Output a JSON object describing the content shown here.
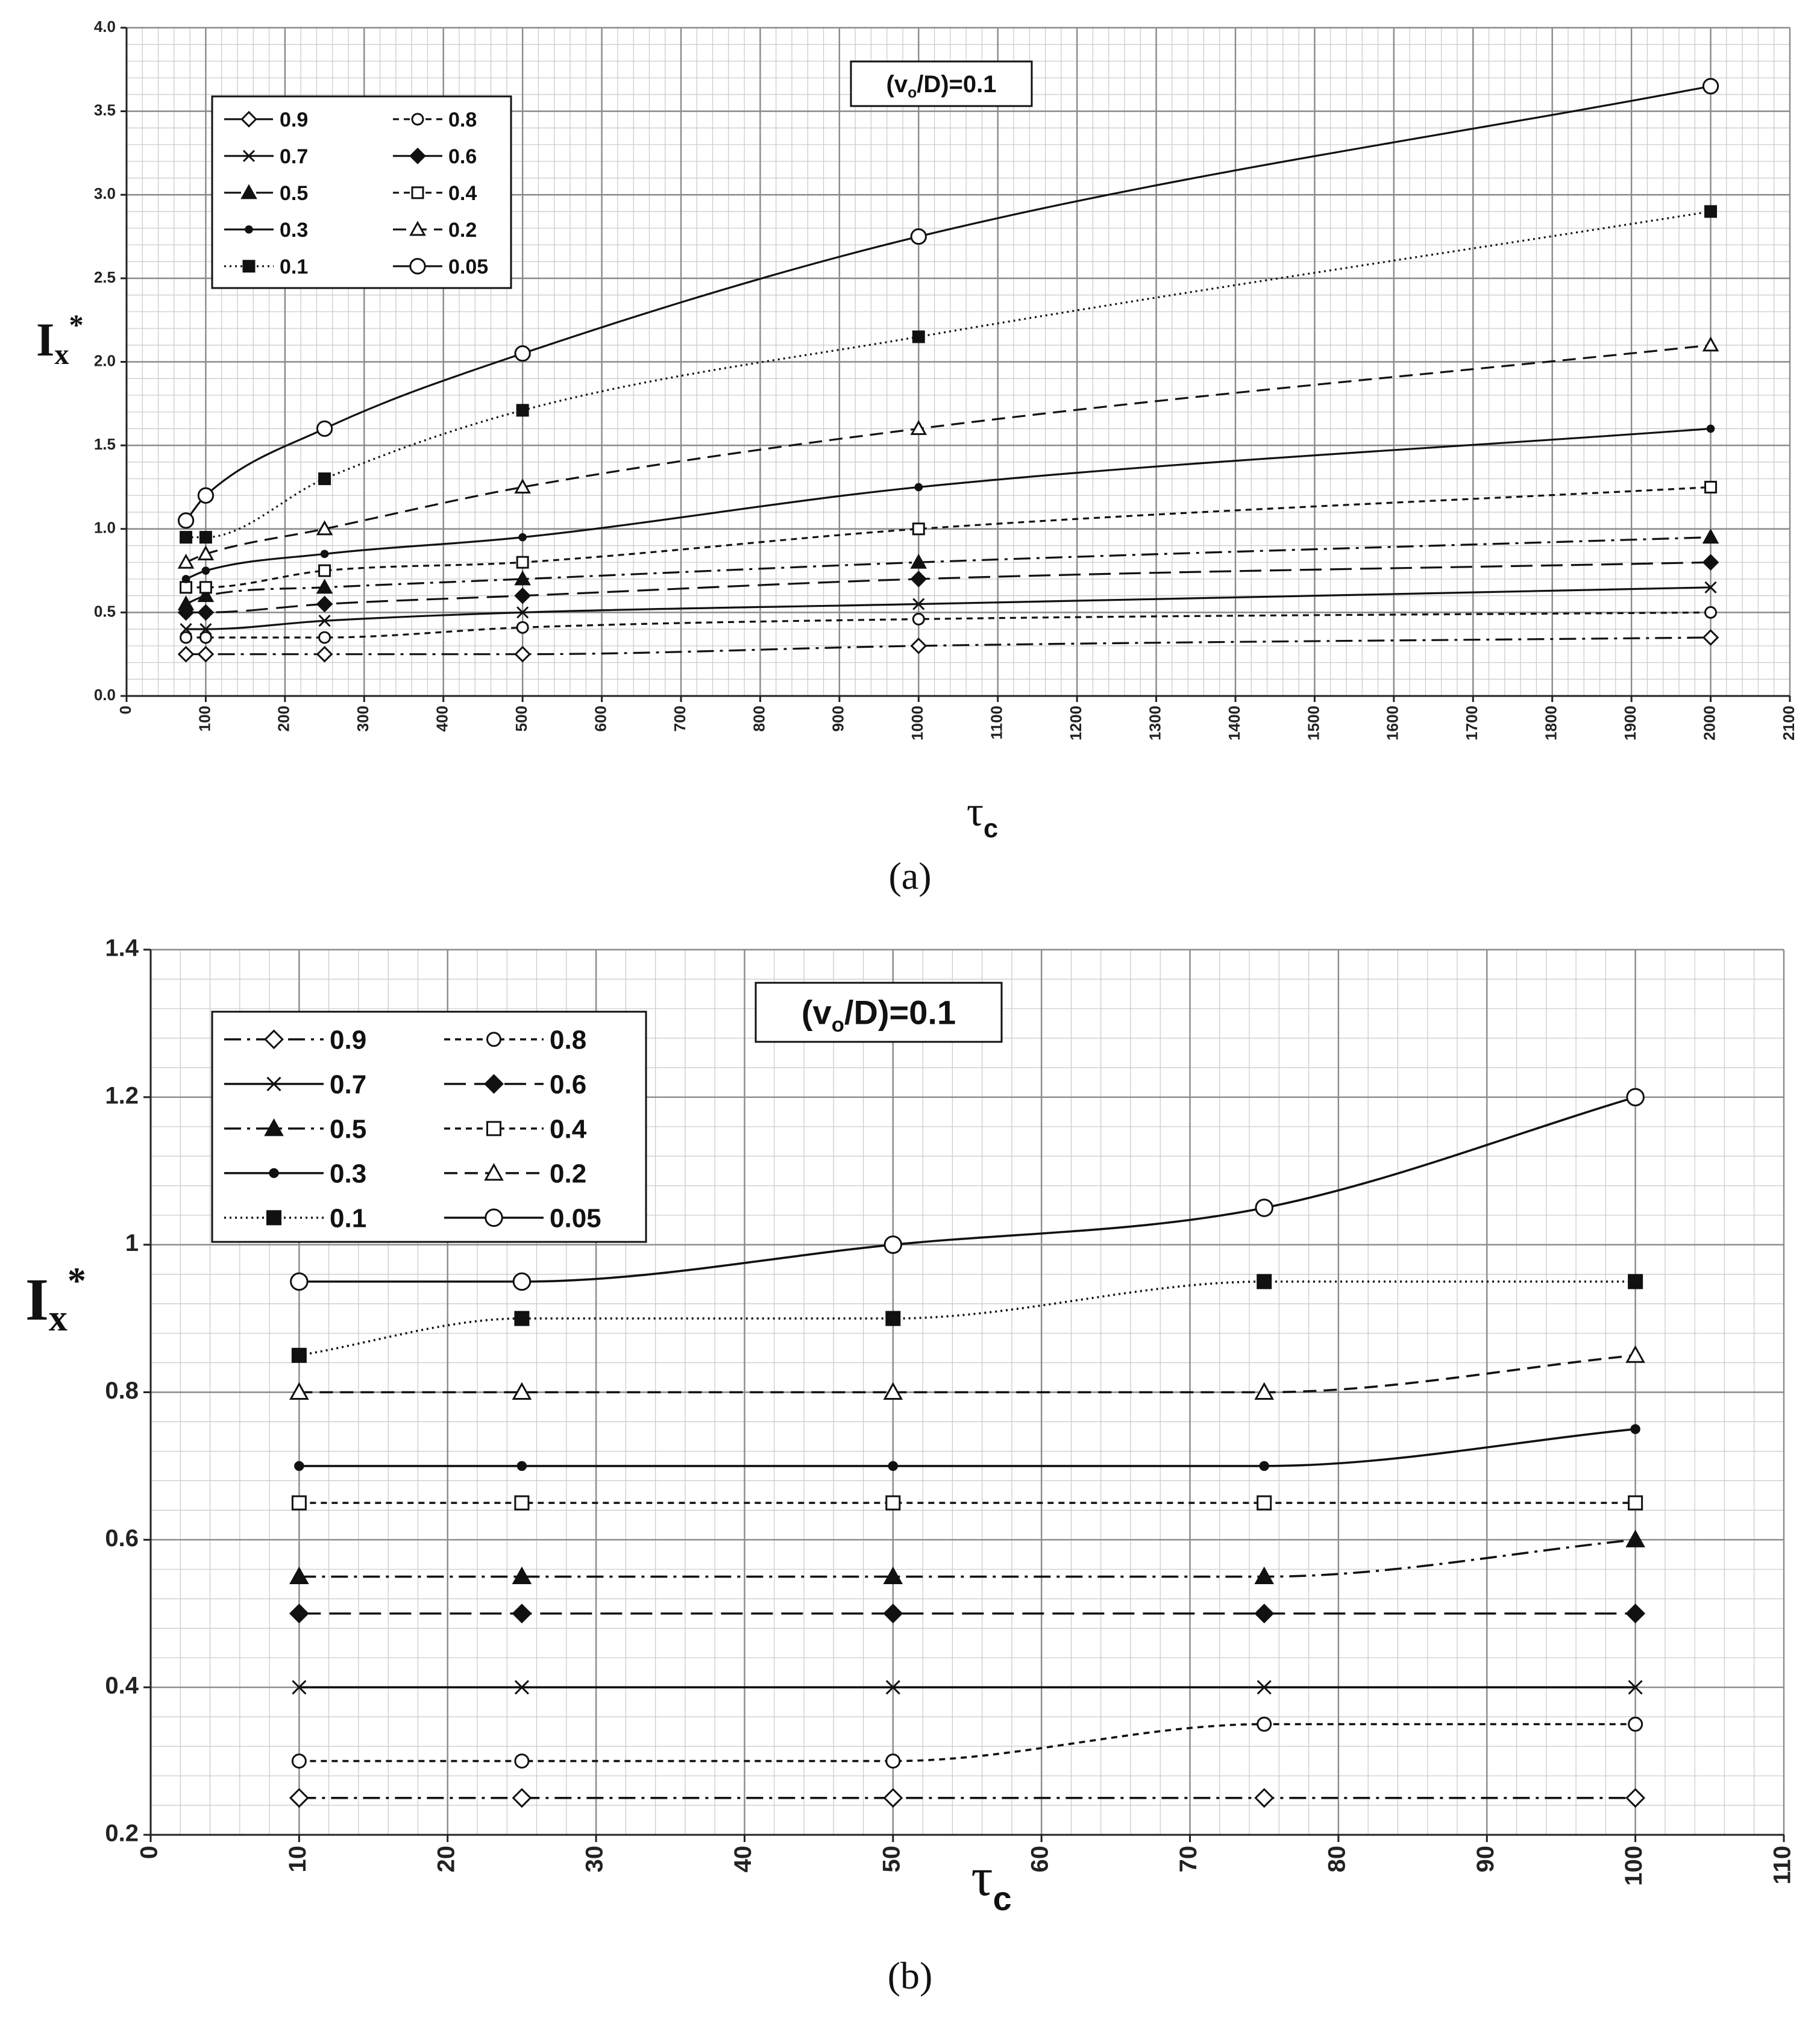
{
  "chart_data": [
    {
      "type": "line",
      "panel": "a",
      "caption": "(a)",
      "annotation": "(vo/D)=0.1",
      "annotation_parts": {
        "pre": "(v",
        "sub": "o",
        "post": "/D)=0.1"
      },
      "xlabel": "τc",
      "xlabel_parts": {
        "main": "τ",
        "sub": "c"
      },
      "ylabel": "Ix*",
      "ylabel_parts": {
        "main": "I",
        "sub": "x",
        "sup": "*"
      },
      "xlim": [
        0,
        2100
      ],
      "ylim": [
        0,
        4.0
      ],
      "x_ticks": [
        0,
        100,
        200,
        300,
        400,
        500,
        600,
        700,
        800,
        900,
        1000,
        1100,
        1200,
        1300,
        1400,
        1500,
        1600,
        1700,
        1800,
        1900,
        2000,
        2100
      ],
      "x_tick_labels": [
        "0",
        "100",
        "200",
        "300",
        "400",
        "500",
        "600",
        "700",
        "800",
        "900",
        "1000",
        "1100",
        "1200",
        "1300",
        "1400",
        "1500",
        "1600",
        "1700",
        "1800",
        "1900",
        "2000",
        "2100"
      ],
      "y_ticks": [
        0,
        0.5,
        1,
        1.5,
        2,
        2.5,
        3,
        3.5,
        4
      ],
      "y_tick_labels": [
        "0.0",
        "0.5",
        "1.0",
        "1.5",
        "2.0",
        "2.5",
        "3.0",
        "3.5",
        "4.0"
      ],
      "x_minor_step": 20,
      "y_minor_step": 0.1,
      "x": [
        75,
        100,
        250,
        500,
        1000,
        2000
      ],
      "legend_position": "top-left",
      "series": [
        {
          "name": "0.9",
          "values": [
            0.25,
            0.25,
            0.25,
            0.25,
            0.3,
            0.35
          ]
        },
        {
          "name": "0.8",
          "values": [
            0.35,
            0.35,
            0.35,
            0.41,
            0.46,
            0.5
          ]
        },
        {
          "name": "0.7",
          "values": [
            0.4,
            0.4,
            0.45,
            0.5,
            0.55,
            0.65
          ]
        },
        {
          "name": "0.6",
          "values": [
            0.5,
            0.5,
            0.55,
            0.6,
            0.7,
            0.8
          ]
        },
        {
          "name": "0.5",
          "values": [
            0.55,
            0.6,
            0.65,
            0.7,
            0.8,
            0.95
          ]
        },
        {
          "name": "0.4",
          "values": [
            0.65,
            0.65,
            0.75,
            0.8,
            1.0,
            1.25
          ]
        },
        {
          "name": "0.3",
          "values": [
            0.7,
            0.75,
            0.85,
            0.95,
            1.25,
            1.6
          ]
        },
        {
          "name": "0.2",
          "values": [
            0.8,
            0.85,
            1.0,
            1.25,
            1.6,
            2.1
          ]
        },
        {
          "name": "0.1",
          "values": [
            0.95,
            0.95,
            1.3,
            1.71,
            2.15,
            2.9
          ]
        },
        {
          "name": "0.05",
          "values": [
            1.05,
            1.2,
            1.6,
            2.05,
            2.75,
            3.65
          ]
        }
      ]
    },
    {
      "type": "line",
      "panel": "b",
      "caption": "(b)",
      "annotation": "(vo/D)=0.1",
      "annotation_parts": {
        "pre": "(v",
        "sub": "o",
        "post": "/D)=0.1"
      },
      "xlabel": "τc",
      "xlabel_parts": {
        "main": "τ",
        "sub": "c"
      },
      "ylabel": "Ix*",
      "ylabel_parts": {
        "main": "I",
        "sub": "x",
        "sup": "*"
      },
      "xlim": [
        0,
        110
      ],
      "ylim": [
        0.2,
        1.4
      ],
      "x_ticks": [
        0,
        10,
        20,
        30,
        40,
        50,
        60,
        70,
        80,
        90,
        100,
        110
      ],
      "x_tick_labels": [
        "0",
        "10",
        "20",
        "30",
        "40",
        "50",
        "60",
        "70",
        "80",
        "90",
        "100",
        "110"
      ],
      "y_ticks": [
        0.2,
        0.4,
        0.6,
        0.8,
        1.0,
        1.2,
        1.4
      ],
      "y_tick_labels": [
        "0.2",
        "0.4",
        "0.6",
        "0.8",
        "1",
        "1.2",
        "1.4"
      ],
      "x_minor_step": 2,
      "y_minor_step": 0.04,
      "x": [
        10,
        25,
        50,
        75,
        100
      ],
      "legend_position": "top-left",
      "series": [
        {
          "name": "0.9",
          "values": [
            0.25,
            0.25,
            0.25,
            0.25,
            0.25
          ]
        },
        {
          "name": "0.8",
          "values": [
            0.3,
            0.3,
            0.3,
            0.35,
            0.35
          ]
        },
        {
          "name": "0.7",
          "values": [
            0.4,
            0.4,
            0.4,
            0.4,
            0.4
          ]
        },
        {
          "name": "0.6",
          "values": [
            0.5,
            0.5,
            0.5,
            0.5,
            0.5
          ]
        },
        {
          "name": "0.5",
          "values": [
            0.55,
            0.55,
            0.55,
            0.55,
            0.6
          ]
        },
        {
          "name": "0.4",
          "values": [
            0.65,
            0.65,
            0.65,
            0.65,
            0.65
          ]
        },
        {
          "name": "0.3",
          "values": [
            0.7,
            0.7,
            0.7,
            0.7,
            0.75
          ]
        },
        {
          "name": "0.2",
          "values": [
            0.8,
            0.8,
            0.8,
            0.8,
            0.85
          ]
        },
        {
          "name": "0.1",
          "values": [
            0.85,
            0.9,
            0.9,
            0.95,
            0.95
          ]
        },
        {
          "name": "0.05",
          "values": [
            0.95,
            0.95,
            1.0,
            1.05,
            1.2
          ]
        }
      ]
    }
  ]
}
